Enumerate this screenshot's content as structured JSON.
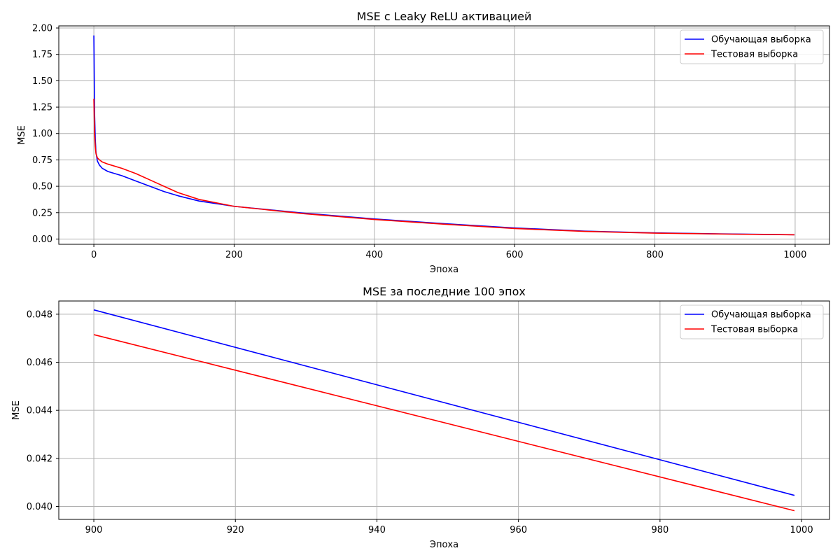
{
  "chart_data": [
    {
      "type": "line",
      "title": "MSE с Leaky ReLU активацией",
      "xlabel": "Эпоха",
      "ylabel": "MSE",
      "xlim": [
        -50,
        1049
      ],
      "ylim": [
        -0.05,
        2.02
      ],
      "xticks": [
        0,
        200,
        400,
        600,
        800,
        1000
      ],
      "xtick_labels": [
        "0",
        "200",
        "400",
        "600",
        "800",
        "1000"
      ],
      "yticks": [
        0.0,
        0.25,
        0.5,
        0.75,
        1.0,
        1.25,
        1.5,
        1.75,
        2.0
      ],
      "ytick_labels": [
        "0.00",
        "0.25",
        "0.50",
        "0.75",
        "1.00",
        "1.25",
        "1.50",
        "1.75",
        "2.00"
      ],
      "grid": true,
      "legend_position": "upper right",
      "series": [
        {
          "name": "Обучающая выборка",
          "color": "#0000ff",
          "x": [
            0,
            1,
            2,
            3,
            5,
            8,
            12,
            20,
            40,
            60,
            80,
            100,
            120,
            150,
            200,
            300,
            400,
            500,
            600,
            700,
            800,
            900,
            999
          ],
          "y": [
            1.93,
            1.2,
            0.95,
            0.82,
            0.74,
            0.7,
            0.67,
            0.64,
            0.6,
            0.55,
            0.5,
            0.45,
            0.41,
            0.36,
            0.31,
            0.245,
            0.19,
            0.145,
            0.105,
            0.075,
            0.058,
            0.048,
            0.0405
          ]
        },
        {
          "name": "Тестовая выборка",
          "color": "#ff0000",
          "x": [
            0,
            1,
            2,
            3,
            5,
            8,
            12,
            20,
            40,
            60,
            80,
            100,
            120,
            150,
            200,
            300,
            400,
            500,
            600,
            700,
            800,
            900,
            999
          ],
          "y": [
            1.33,
            1.0,
            0.88,
            0.81,
            0.77,
            0.75,
            0.73,
            0.71,
            0.67,
            0.62,
            0.56,
            0.5,
            0.44,
            0.375,
            0.31,
            0.24,
            0.185,
            0.14,
            0.1,
            0.072,
            0.056,
            0.047,
            0.0398
          ]
        }
      ]
    },
    {
      "type": "line",
      "title": "MSE за последние 100 эпох",
      "xlabel": "Эпоха",
      "ylabel": "MSE",
      "xlim": [
        895.05,
        1003.95
      ],
      "ylim": [
        0.03946,
        0.04855
      ],
      "xticks": [
        900,
        920,
        940,
        960,
        980,
        1000
      ],
      "xtick_labels": [
        "900",
        "920",
        "940",
        "960",
        "980",
        "1000"
      ],
      "yticks": [
        0.04,
        0.042,
        0.044,
        0.046,
        0.048
      ],
      "ytick_labels": [
        "0.040",
        "0.042",
        "0.044",
        "0.046",
        "0.048"
      ],
      "grid": true,
      "legend_position": "upper right",
      "series": [
        {
          "name": "Обучающая выборка",
          "color": "#0000ff",
          "x": [
            900,
            999
          ],
          "y": [
            0.04818,
            0.04046
          ]
        },
        {
          "name": "Тестовая выборка",
          "color": "#ff0000",
          "x": [
            900,
            999
          ],
          "y": [
            0.04715,
            0.03982
          ]
        }
      ]
    }
  ]
}
